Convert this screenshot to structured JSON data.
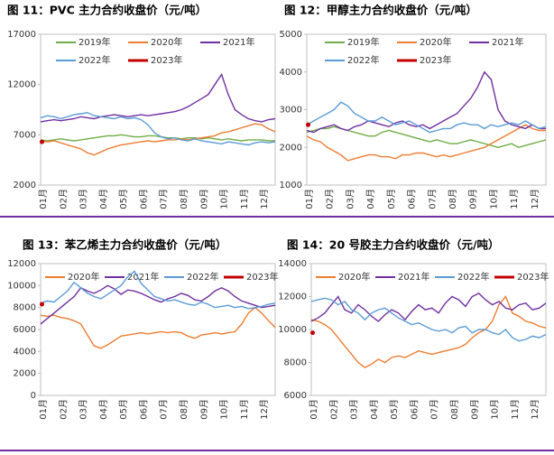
{
  "chart_data": [
    {
      "type": "line",
      "title": "图 11：PVC 主力合约收盘价（元/吨）",
      "categories": [
        "01月",
        null,
        null,
        "02月",
        null,
        null,
        "03月",
        null,
        null,
        "04月",
        null,
        null,
        "05月",
        null,
        null,
        "06月",
        null,
        null,
        "07月",
        null,
        null,
        "08月",
        null,
        null,
        "09月",
        null,
        null,
        "10月",
        null,
        null,
        "11月",
        null,
        null,
        "12月",
        null,
        null
      ],
      "ylim": [
        2000,
        17000
      ],
      "yticks": [
        2000,
        7000,
        12000,
        17000
      ],
      "grid": false,
      "series": [
        {
          "name": "2019年",
          "color": "#70ad47",
          "values": [
            6500,
            6400,
            6500,
            6600,
            6500,
            6400,
            6500,
            6600,
            6700,
            6800,
            6900,
            6900,
            7000,
            6900,
            6800,
            6800,
            6900,
            6900,
            6800,
            6700,
            6700,
            6600,
            6700,
            6700,
            6600,
            6700,
            6600,
            6500,
            6600,
            6500,
            6400,
            6500,
            6500,
            6500,
            6400,
            6400
          ]
        },
        {
          "name": "2020年",
          "color": "#ed7d31",
          "values": [
            6400,
            6300,
            6400,
            6200,
            6000,
            5800,
            5600,
            5200,
            5000,
            5300,
            5600,
            5800,
            6000,
            6100,
            6200,
            6300,
            6400,
            6300,
            6400,
            6500,
            6500,
            6600,
            6500,
            6600,
            6700,
            6800,
            6900,
            7200,
            7300,
            7500,
            7700,
            7900,
            8100,
            8000,
            7600,
            7300
          ]
        },
        {
          "name": "2021年",
          "color": "#7030a0",
          "values": [
            8300,
            8400,
            8500,
            8400,
            8500,
            8600,
            8800,
            8700,
            8600,
            8800,
            8900,
            9000,
            8900,
            8800,
            8900,
            9000,
            8900,
            9000,
            9100,
            9200,
            9300,
            9500,
            9800,
            10200,
            10600,
            11000,
            12000,
            13000,
            11000,
            9500,
            9000,
            8600,
            8400,
            8300,
            8500,
            8600
          ]
        },
        {
          "name": "2022年",
          "color": "#5b9bd5",
          "values": [
            8700,
            8900,
            8800,
            8600,
            8800,
            9000,
            9100,
            9200,
            8900,
            8800,
            8700,
            8600,
            8800,
            8600,
            8700,
            8500,
            8000,
            7200,
            6800,
            6600,
            6700,
            6500,
            6400,
            6600,
            6400,
            6300,
            6200,
            6100,
            6300,
            6200,
            6100,
            6000,
            6200,
            6300,
            6200,
            6300
          ]
        },
        {
          "name": "2023年",
          "color": "#c00000",
          "values": [
            6300,
            null,
            null,
            null,
            null,
            null,
            null,
            null,
            null,
            null,
            null,
            null,
            null,
            null,
            null,
            null,
            null,
            null,
            null,
            null,
            null,
            null,
            null,
            null,
            null,
            null,
            null,
            null,
            null,
            null,
            null,
            null,
            null,
            null,
            null,
            null
          ]
        }
      ]
    },
    {
      "type": "line",
      "title": "图 12：甲醇主力合约收盘价（元/吨）",
      "categories": [
        "01月",
        null,
        null,
        "02月",
        null,
        null,
        "03月",
        null,
        null,
        "04月",
        null,
        null,
        "05月",
        null,
        null,
        "06月",
        null,
        null,
        "07月",
        null,
        null,
        "08月",
        null,
        null,
        "09月",
        null,
        null,
        "10月",
        null,
        null,
        "11月",
        null,
        null,
        "12月",
        null,
        null
      ],
      "ylim": [
        1000,
        5000
      ],
      "yticks": [
        1000,
        2000,
        3000,
        4000,
        5000
      ],
      "grid": false,
      "series": [
        {
          "name": "2019年",
          "color": "#70ad47",
          "values": [
            2400,
            2450,
            2500,
            2500,
            2550,
            2500,
            2450,
            2400,
            2350,
            2300,
            2300,
            2400,
            2450,
            2400,
            2350,
            2300,
            2250,
            2200,
            2150,
            2200,
            2150,
            2100,
            2100,
            2150,
            2200,
            2150,
            2100,
            2050,
            2000,
            2050,
            2100,
            2000,
            2050,
            2100,
            2150,
            2200
          ]
        },
        {
          "name": "2020年",
          "color": "#ed7d31",
          "values": [
            2300,
            2200,
            2150,
            2000,
            1900,
            1800,
            1650,
            1700,
            1750,
            1800,
            1800,
            1750,
            1750,
            1700,
            1800,
            1800,
            1850,
            1850,
            1800,
            1750,
            1800,
            1750,
            1800,
            1850,
            1900,
            1950,
            2000,
            2100,
            2200,
            2300,
            2400,
            2500,
            2600,
            2500,
            2450,
            2450
          ]
        },
        {
          "name": "2021年",
          "color": "#7030a0",
          "values": [
            2450,
            2400,
            2500,
            2550,
            2600,
            2500,
            2450,
            2550,
            2600,
            2700,
            2650,
            2600,
            2550,
            2650,
            2700,
            2600,
            2550,
            2600,
            2500,
            2600,
            2700,
            2800,
            2900,
            3100,
            3300,
            3600,
            4000,
            3800,
            3000,
            2700,
            2600,
            2550,
            2500,
            2600,
            2500,
            2500
          ]
        },
        {
          "name": "2022年",
          "color": "#5b9bd5",
          "values": [
            2600,
            2700,
            2800,
            2900,
            3000,
            3200,
            3100,
            2900,
            2800,
            2700,
            2700,
            2800,
            2700,
            2600,
            2650,
            2700,
            2600,
            2500,
            2400,
            2450,
            2500,
            2500,
            2600,
            2650,
            2600,
            2600,
            2500,
            2600,
            2550,
            2600,
            2650,
            2600,
            2700,
            2600,
            2500,
            2550
          ]
        },
        {
          "name": "2023年",
          "color": "#c00000",
          "values": [
            2600,
            null,
            null,
            null,
            null,
            null,
            null,
            null,
            null,
            null,
            null,
            null,
            null,
            null,
            null,
            null,
            null,
            null,
            null,
            null,
            null,
            null,
            null,
            null,
            null,
            null,
            null,
            null,
            null,
            null,
            null,
            null,
            null,
            null,
            null,
            null
          ]
        }
      ]
    },
    {
      "type": "line",
      "title": "图 13：苯乙烯主力合约收盘价（元/吨）",
      "categories": [
        "01月",
        null,
        null,
        "02月",
        null,
        null,
        "03月",
        null,
        null,
        "04月",
        null,
        null,
        "05月",
        null,
        null,
        "06月",
        null,
        null,
        "07月",
        null,
        null,
        "08月",
        null,
        null,
        "09月",
        null,
        null,
        "10月",
        null,
        null,
        "11月",
        null,
        null,
        "12月",
        null,
        null
      ],
      "ylim": [
        0,
        12000
      ],
      "yticks": [
        0,
        2000,
        4000,
        6000,
        8000,
        10000,
        12000
      ],
      "grid": false,
      "series": [
        {
          "name": "2020年",
          "color": "#ed7d31",
          "values": [
            7300,
            7200,
            7300,
            7100,
            7000,
            6800,
            6500,
            5500,
            4500,
            4300,
            4600,
            5000,
            5400,
            5500,
            5600,
            5700,
            5600,
            5700,
            5800,
            5700,
            5800,
            5700,
            5400,
            5200,
            5500,
            5600,
            5700,
            5600,
            5700,
            5800,
            6500,
            7500,
            8000,
            7500,
            6800,
            6200
          ]
        },
        {
          "name": "2021年",
          "color": "#7030a0",
          "values": [
            6500,
            7000,
            7500,
            8000,
            8500,
            9000,
            9800,
            9500,
            9300,
            9600,
            10000,
            9700,
            9200,
            9600,
            9500,
            9300,
            9000,
            8700,
            8500,
            8800,
            9000,
            9300,
            9100,
            8700,
            8600,
            9000,
            9500,
            9800,
            9500,
            9000,
            8600,
            8400,
            8200,
            8000,
            8100,
            8200
          ]
        },
        {
          "name": "2022年",
          "color": "#5b9bd5",
          "values": [
            8400,
            8600,
            8500,
            9000,
            9500,
            10300,
            9800,
            9300,
            9000,
            8800,
            9200,
            9600,
            10000,
            10800,
            11300,
            10200,
            9600,
            9000,
            8800,
            8600,
            8700,
            8500,
            8300,
            8200,
            8500,
            8300,
            8000,
            8100,
            8200,
            8000,
            8100,
            7900,
            8000,
            8100,
            8300,
            8400
          ]
        },
        {
          "name": "2023年",
          "color": "#c00000",
          "values": [
            8300,
            null,
            null,
            null,
            null,
            null,
            null,
            null,
            null,
            null,
            null,
            null,
            null,
            null,
            null,
            null,
            null,
            null,
            null,
            null,
            null,
            null,
            null,
            null,
            null,
            null,
            null,
            null,
            null,
            null,
            null,
            null,
            null,
            null,
            null,
            null
          ]
        }
      ]
    },
    {
      "type": "line",
      "title": "图 14：20 号胶主力合约收盘价（元/吨）",
      "categories": [
        "01月",
        null,
        null,
        "02月",
        null,
        null,
        "03月",
        null,
        null,
        "04月",
        null,
        null,
        "05月",
        null,
        null,
        "06月",
        null,
        null,
        "07月",
        null,
        null,
        "08月",
        null,
        null,
        "09月",
        null,
        null,
        "10月",
        null,
        null,
        "11月",
        null,
        null,
        "12月",
        null,
        null
      ],
      "ylim": [
        6000,
        14000
      ],
      "yticks": [
        6000,
        8000,
        10000,
        12000,
        14000
      ],
      "grid": false,
      "series": [
        {
          "name": "2020年",
          "color": "#ed7d31",
          "values": [
            10600,
            10500,
            10300,
            10000,
            9500,
            9000,
            8500,
            8000,
            7700,
            7900,
            8200,
            8000,
            8300,
            8400,
            8300,
            8500,
            8700,
            8600,
            8500,
            8600,
            8700,
            8800,
            8900,
            9100,
            9500,
            9800,
            10000,
            10500,
            11500,
            12000,
            11000,
            10800,
            10500,
            10400,
            10200,
            10100
          ]
        },
        {
          "name": "2021年",
          "color": "#7030a0",
          "values": [
            10500,
            10700,
            11000,
            11500,
            12000,
            11200,
            11000,
            11500,
            11200,
            10800,
            10500,
            10900,
            11200,
            11000,
            10600,
            11100,
            11500,
            11200,
            11300,
            11000,
            11600,
            12000,
            11800,
            11400,
            12000,
            12200,
            11800,
            11500,
            11700,
            11300,
            11200,
            11500,
            11600,
            11200,
            11300,
            11600
          ]
        },
        {
          "name": "2022年",
          "color": "#5b9bd5",
          "values": [
            11700,
            11800,
            11900,
            11800,
            11500,
            11700,
            11200,
            11000,
            10600,
            11000,
            11200,
            11300,
            11000,
            10700,
            10500,
            10300,
            10400,
            10200,
            10000,
            9900,
            10000,
            9800,
            10100,
            10200,
            9800,
            10000,
            10000,
            9800,
            9700,
            10000,
            9500,
            9300,
            9400,
            9600,
            9500,
            9700
          ]
        },
        {
          "name": "2023年",
          "color": "#c00000",
          "values": [
            9800,
            null,
            null,
            null,
            null,
            null,
            null,
            null,
            null,
            null,
            null,
            null,
            null,
            null,
            null,
            null,
            null,
            null,
            null,
            null,
            null,
            null,
            null,
            null,
            null,
            null,
            null,
            null,
            null,
            null,
            null,
            null,
            null,
            null,
            null,
            null
          ]
        }
      ]
    }
  ]
}
